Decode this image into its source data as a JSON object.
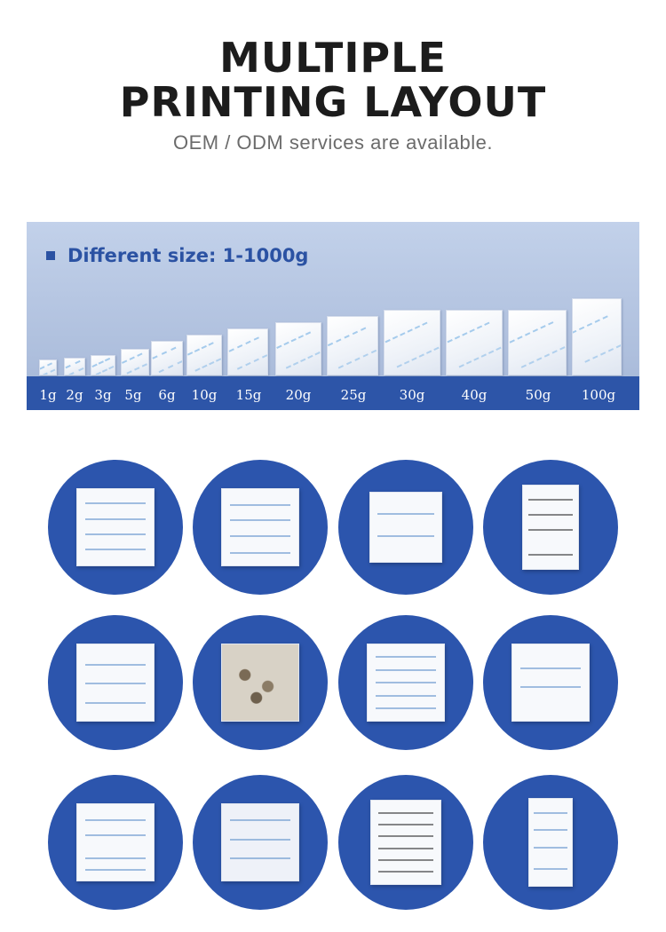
{
  "header": {
    "title_line1": "MULTIPLE",
    "title_line2": "PRINTING LAYOUT",
    "subtitle": "OEM / ODM services are available."
  },
  "size_banner": {
    "title": "Different size: 1-1000g",
    "sizes": [
      "1g",
      "2g",
      "3g",
      "5g",
      "6g",
      "10g",
      "15g",
      "20g",
      "25g",
      "30g",
      "40g",
      "50g",
      "100g"
    ]
  },
  "sample_grid": {
    "items": [
      {
        "id": "sample-silica-gel-throw-away"
      },
      {
        "id": "sample-desiccant-do-not-eat-blue"
      },
      {
        "id": "sample-silica-gel-transparent"
      },
      {
        "id": "sample-gel-de-silice"
      },
      {
        "id": "sample-desiccant-chinese-print"
      },
      {
        "id": "sample-clear-bag-beads"
      },
      {
        "id": "sample-multilingual-desiccant"
      },
      {
        "id": "sample-silica-gel-diagonal"
      },
      {
        "id": "sample-desiccant-multi-print"
      },
      {
        "id": "sample-tyvek-desiccant"
      },
      {
        "id": "sample-multilingual-black-print"
      },
      {
        "id": "sample-desiccant-tall-strip"
      }
    ]
  },
  "colors": {
    "accent_blue": "#2c55ad",
    "banner_bg": "#b5c5e2",
    "title_text": "#1c1c1c",
    "subtitle_text": "#6b6b6b"
  }
}
